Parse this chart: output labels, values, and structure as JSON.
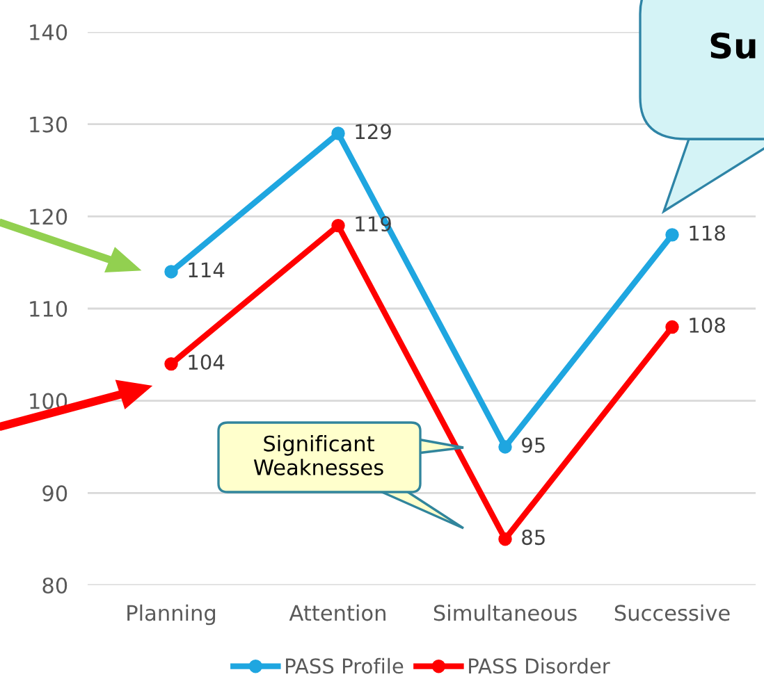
{
  "chart_data": {
    "type": "line",
    "categories": [
      "Planning",
      "Attention",
      "Simultaneous",
      "Successive"
    ],
    "series": [
      {
        "name": "PASS Profile",
        "color": "#1fa6e0",
        "values": [
          114,
          129,
          95,
          118
        ]
      },
      {
        "name": "PASS Disorder",
        "color": "#ff0000",
        "values": [
          104,
          119,
          85,
          108
        ]
      }
    ],
    "ylim": [
      80,
      140
    ],
    "yticks": [
      80,
      90,
      100,
      110,
      120,
      130,
      140
    ],
    "grid": "y",
    "legend": "bottom",
    "marker": "circle",
    "line_style": "solid",
    "data_labels": true,
    "annotations": [
      "Significant\nWeaknesses",
      "Su"
    ]
  }
}
